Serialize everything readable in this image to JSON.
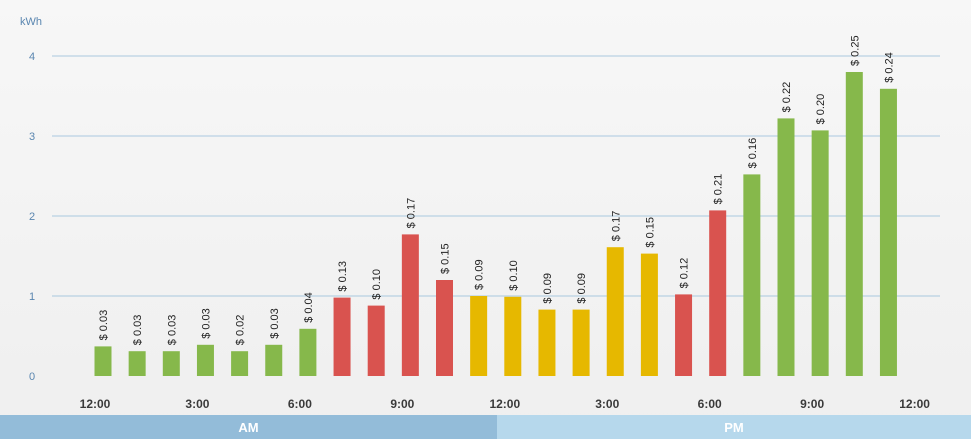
{
  "chart_data": {
    "type": "bar",
    "ylabel": "kWh",
    "ylim": [
      0,
      4
    ],
    "yticks": [
      0,
      1,
      2,
      3,
      4
    ],
    "grid": true,
    "x_tick_labels": [
      "12:00",
      "3:00",
      "6:00",
      "9:00",
      "12:00",
      "3:00",
      "6:00",
      "9:00",
      "12:00"
    ],
    "periods": [
      "AM",
      "PM"
    ],
    "bars": [
      {
        "value": 0.37,
        "cost": "$ 0.03",
        "color": "#86b84b"
      },
      {
        "value": 0.31,
        "cost": "$ 0.03",
        "color": "#86b84b"
      },
      {
        "value": 0.31,
        "cost": "$ 0.03",
        "color": "#86b84b"
      },
      {
        "value": 0.39,
        "cost": "$ 0.03",
        "color": "#86b84b"
      },
      {
        "value": 0.31,
        "cost": "$ 0.02",
        "color": "#86b84b"
      },
      {
        "value": 0.39,
        "cost": "$ 0.03",
        "color": "#86b84b"
      },
      {
        "value": 0.59,
        "cost": "$ 0.04",
        "color": "#86b84b"
      },
      {
        "value": 0.98,
        "cost": "$ 0.13",
        "color": "#d9534f"
      },
      {
        "value": 0.88,
        "cost": "$ 0.10",
        "color": "#d9534f"
      },
      {
        "value": 1.77,
        "cost": "$ 0.17",
        "color": "#d9534f"
      },
      {
        "value": 1.2,
        "cost": "$ 0.15",
        "color": "#d9534f"
      },
      {
        "value": 1.0,
        "cost": "$ 0.09",
        "color": "#e6b800"
      },
      {
        "value": 0.99,
        "cost": "$ 0.10",
        "color": "#e6b800"
      },
      {
        "value": 0.83,
        "cost": "$ 0.09",
        "color": "#e6b800"
      },
      {
        "value": 0.83,
        "cost": "$ 0.09",
        "color": "#e6b800"
      },
      {
        "value": 1.61,
        "cost": "$ 0.17",
        "color": "#e6b800"
      },
      {
        "value": 1.53,
        "cost": "$ 0.15",
        "color": "#e6b800"
      },
      {
        "value": 1.02,
        "cost": "$ 0.12",
        "color": "#d9534f"
      },
      {
        "value": 2.07,
        "cost": "$ 0.21",
        "color": "#d9534f"
      },
      {
        "value": 2.52,
        "cost": "$ 0.16",
        "color": "#86b84b"
      },
      {
        "value": 3.22,
        "cost": "$ 0.22",
        "color": "#86b84b"
      },
      {
        "value": 3.07,
        "cost": "$ 0.20",
        "color": "#86b84b"
      },
      {
        "value": 3.8,
        "cost": "$ 0.25",
        "color": "#86b84b"
      },
      {
        "value": 3.59,
        "cost": "$ 0.24",
        "color": "#86b84b"
      }
    ]
  }
}
